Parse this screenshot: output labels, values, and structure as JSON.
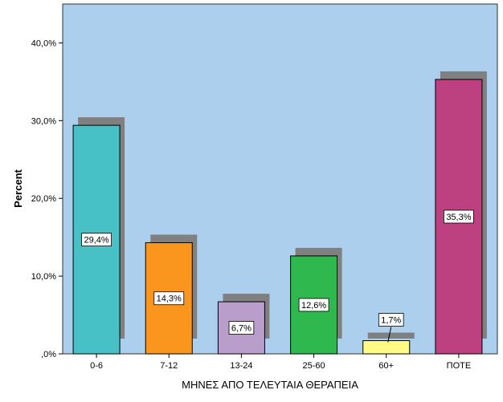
{
  "chart_data": {
    "type": "bar",
    "title": "",
    "xlabel": "ΜΗΝΕΣ ΑΠΟ ΤΕΛΕΥΤΑΙΑ ΘΕΡΑΠΕΙΑ",
    "ylabel": "Percent",
    "ylim": [
      0,
      45
    ],
    "yticks": [
      0,
      10,
      20,
      30,
      40
    ],
    "ytick_labels": [
      ",0%",
      "10,0%",
      "20,0%",
      "30,0%",
      "40,0%"
    ],
    "grid": false,
    "legend": "none",
    "categories": [
      "0-6",
      "7-12",
      "13-24",
      "25-60",
      "60+",
      "ΠΟΤΕ"
    ],
    "values": [
      29.4,
      14.3,
      6.7,
      12.6,
      1.7,
      35.3
    ],
    "value_labels": [
      "29,4%",
      "14,3%",
      "6,7%",
      "12,6%",
      "1,7%",
      "35,3%"
    ],
    "colors": [
      "#47c1c5",
      "#fa961e",
      "#b99ecb",
      "#2fb84d",
      "#fffb84",
      "#bd4081"
    ],
    "shadow_color": "#808080",
    "plot_background": "#abcfed"
  }
}
